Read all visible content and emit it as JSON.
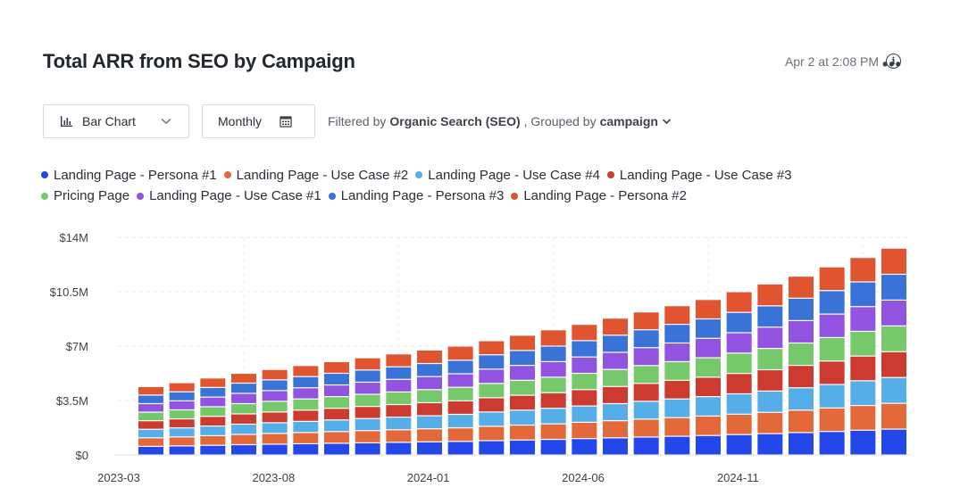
{
  "header": {
    "title": "Total ARR from SEO by Campaign",
    "timestamp": "Apr 2 at 2:08 PM",
    "info_icon": "info-icon",
    "more_icon": "more-horizontal-icon"
  },
  "controls": {
    "chart_type_label": "Bar Chart",
    "chart_type_icon": "bar-chart-icon",
    "period_label": "Monthly",
    "period_icon": "calendar-icon",
    "filter_prefix": "Filtered by",
    "filter_value": "Organic Search (SEO)",
    "group_prefix": ", Grouped by",
    "group_value": "campaign"
  },
  "colors": {
    "persona1": "#2347e8",
    "usecase2": "#e3683a",
    "usecase4": "#55aee8",
    "usecase3": "#cc3a30",
    "pricing": "#76c96a",
    "usecase1": "#9153e0",
    "persona3": "#3a73d8",
    "persona2": "#e05530"
  },
  "chart_data": {
    "type": "bar",
    "stacked": true,
    "title": "Total ARR from SEO by Campaign",
    "xlabel": "",
    "ylabel": "",
    "ylim": [
      0,
      14000000
    ],
    "y_ticks": [
      "$0",
      "$3.5M",
      "$7M",
      "$10.5M",
      "$14M"
    ],
    "x_tick_labels": [
      "2023-03",
      "2023-08",
      "2024-01",
      "2024-06",
      "2024-11"
    ],
    "categories": [
      "2023-03",
      "2023-04",
      "2023-05",
      "2023-06",
      "2023-07",
      "2023-08",
      "2023-09",
      "2023-10",
      "2023-11",
      "2023-12",
      "2024-01",
      "2024-02",
      "2024-03",
      "2024-04",
      "2024-05",
      "2024-06",
      "2024-07",
      "2024-08",
      "2024-09",
      "2024-10",
      "2024-11",
      "2024-12",
      "2025-01",
      "2025-02",
      "2025-03"
    ],
    "totals": [
      4400000,
      4650000,
      4950000,
      5250000,
      5500000,
      5750000,
      6000000,
      6250000,
      6500000,
      6750000,
      7000000,
      7350000,
      7700000,
      8050000,
      8400000,
      8800000,
      9200000,
      9600000,
      10000000,
      10500000,
      11000000,
      11500000,
      12100000,
      12700000,
      13300000
    ],
    "series": [
      {
        "name": "Landing Page - Persona #1",
        "color_key": "persona1",
        "values": [
          550000,
          580000,
          620000,
          660000,
          690000,
          720000,
          750000,
          780000,
          810000,
          840000,
          870000,
          920000,
          960000,
          1000000,
          1050000,
          1100000,
          1150000,
          1200000,
          1250000,
          1310000,
          1370000,
          1440000,
          1510000,
          1590000,
          1660000
        ]
      },
      {
        "name": "Landing Page - Use Case #2",
        "color_key": "usecase2",
        "values": [
          550000,
          580000,
          620000,
          660000,
          690000,
          720000,
          750000,
          780000,
          810000,
          840000,
          870000,
          920000,
          960000,
          1000000,
          1050000,
          1100000,
          1150000,
          1200000,
          1250000,
          1310000,
          1370000,
          1440000,
          1510000,
          1590000,
          1660000
        ]
      },
      {
        "name": "Landing Page - Use Case #4",
        "color_key": "usecase4",
        "values": [
          550000,
          580000,
          620000,
          660000,
          690000,
          720000,
          750000,
          780000,
          810000,
          840000,
          870000,
          920000,
          960000,
          1000000,
          1050000,
          1100000,
          1150000,
          1200000,
          1250000,
          1310000,
          1370000,
          1440000,
          1510000,
          1590000,
          1660000
        ]
      },
      {
        "name": "Landing Page - Use Case #3",
        "color_key": "usecase3",
        "values": [
          550000,
          580000,
          620000,
          660000,
          690000,
          720000,
          750000,
          780000,
          810000,
          840000,
          870000,
          920000,
          960000,
          1000000,
          1050000,
          1100000,
          1150000,
          1200000,
          1250000,
          1310000,
          1370000,
          1440000,
          1510000,
          1590000,
          1660000
        ]
      },
      {
        "name": "Pricing Page",
        "color_key": "pricing",
        "values": [
          550000,
          580000,
          620000,
          660000,
          690000,
          720000,
          750000,
          780000,
          810000,
          840000,
          870000,
          920000,
          960000,
          1000000,
          1050000,
          1100000,
          1150000,
          1200000,
          1250000,
          1310000,
          1370000,
          1440000,
          1510000,
          1590000,
          1660000
        ]
      },
      {
        "name": "Landing Page - Use Case #1",
        "color_key": "usecase1",
        "values": [
          550000,
          580000,
          620000,
          660000,
          690000,
          720000,
          750000,
          780000,
          810000,
          840000,
          870000,
          920000,
          960000,
          1000000,
          1050000,
          1100000,
          1150000,
          1200000,
          1250000,
          1310000,
          1370000,
          1440000,
          1510000,
          1590000,
          1660000
        ]
      },
      {
        "name": "Landing Page - Persona #3",
        "color_key": "persona3",
        "values": [
          550000,
          580000,
          620000,
          660000,
          690000,
          720000,
          750000,
          780000,
          810000,
          840000,
          870000,
          920000,
          960000,
          1000000,
          1050000,
          1100000,
          1150000,
          1200000,
          1250000,
          1310000,
          1370000,
          1440000,
          1510000,
          1590000,
          1660000
        ]
      },
      {
        "name": "Landing Page - Persona #2",
        "color_key": "persona2",
        "values": [
          550000,
          590000,
          610000,
          630000,
          670000,
          710000,
          750000,
          790000,
          830000,
          870000,
          910000,
          910000,
          980000,
          1050000,
          1050000,
          1100000,
          1150000,
          1200000,
          1250000,
          1330000,
          1410000,
          1420000,
          1530000,
          1570000,
          1680000
        ]
      }
    ]
  }
}
